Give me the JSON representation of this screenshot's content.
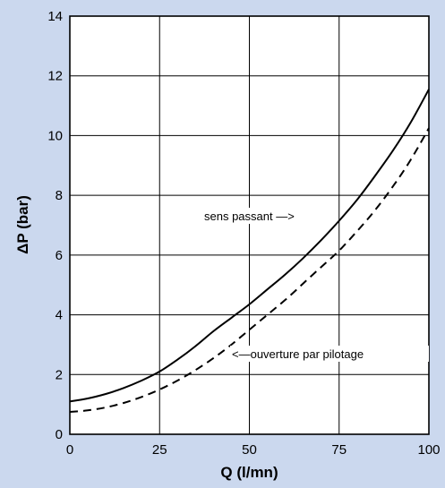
{
  "chart_data": {
    "type": "line",
    "xlabel": "Q (l/mn)",
    "ylabel": "ΔP (bar)",
    "xlim": [
      0,
      100
    ],
    "ylim": [
      0,
      14
    ],
    "x_ticks": [
      0,
      25,
      50,
      75,
      100
    ],
    "y_ticks": [
      0,
      2,
      4,
      6,
      8,
      10,
      12,
      14
    ],
    "grid": true,
    "series": [
      {
        "name": "sens passant",
        "style": "solid",
        "x": [
          0,
          5,
          10,
          15,
          20,
          25,
          30,
          35,
          40,
          45,
          50,
          55,
          60,
          65,
          70,
          75,
          80,
          85,
          90,
          95,
          100
        ],
        "y": [
          1.1,
          1.2,
          1.35,
          1.55,
          1.8,
          2.1,
          2.5,
          2.95,
          3.45,
          3.9,
          4.35,
          4.85,
          5.35,
          5.9,
          6.5,
          7.15,
          7.85,
          8.65,
          9.5,
          10.45,
          11.55
        ]
      },
      {
        "name": "ouverture par pilotage",
        "style": "dashed",
        "x": [
          0,
          5,
          10,
          15,
          20,
          25,
          30,
          35,
          40,
          45,
          50,
          55,
          60,
          65,
          70,
          75,
          80,
          85,
          90,
          95,
          100
        ],
        "y": [
          0.75,
          0.8,
          0.9,
          1.05,
          1.25,
          1.5,
          1.8,
          2.15,
          2.55,
          3.0,
          3.5,
          4.0,
          4.5,
          5.05,
          5.6,
          6.15,
          6.8,
          7.5,
          8.3,
          9.2,
          10.25
        ]
      }
    ],
    "annotations": [
      {
        "text": "sens passant —>",
        "series": "sens passant"
      },
      {
        "text": "<—ouverture par pilotage",
        "series": "ouverture par pilotage"
      }
    ]
  }
}
